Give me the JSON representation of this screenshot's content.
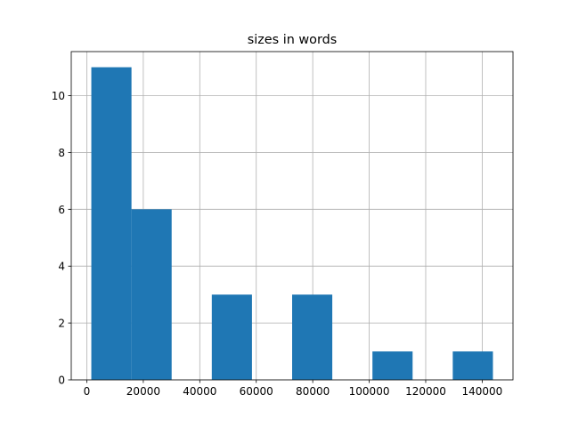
{
  "chart_data": {
    "type": "histogram",
    "title": "sizes in words",
    "bins": [
      1600,
      15820,
      30040,
      44260,
      58480,
      72700,
      86920,
      101140,
      115360,
      129580,
      143800
    ],
    "values": [
      11,
      6,
      0,
      3,
      0,
      3,
      0,
      1,
      0,
      1
    ],
    "color": "#1f77b4",
    "xlim": [
      -5510,
      150910
    ],
    "xticks": [
      0,
      20000,
      40000,
      60000,
      80000,
      100000,
      120000,
      140000
    ],
    "ylim": [
      0,
      11.55
    ],
    "yticks": [
      0,
      2,
      4,
      6,
      8,
      10
    ],
    "grid": true
  }
}
